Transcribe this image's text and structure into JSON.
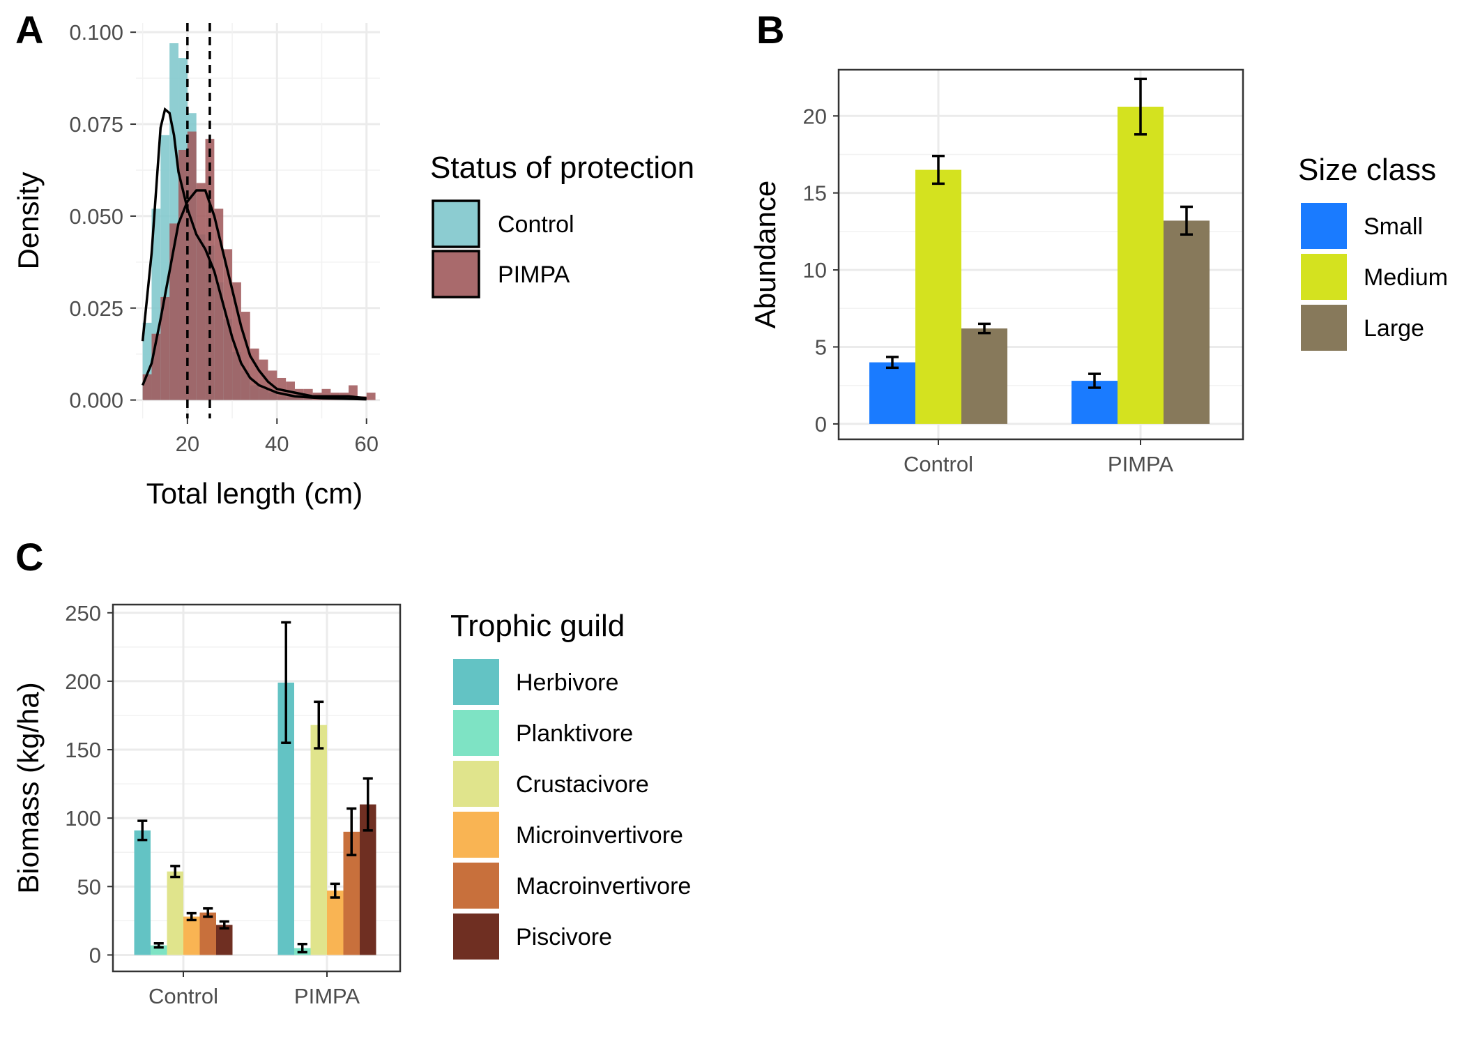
{
  "panels": {
    "A": {
      "label": "A"
    },
    "B": {
      "label": "B"
    },
    "C": {
      "label": "C"
    }
  },
  "chart_data": [
    {
      "panel": "A",
      "type": "histogram",
      "xlabel": "Total length (cm)",
      "ylabel": "Density",
      "xlim": [
        8.5,
        63
      ],
      "ylim": [
        0,
        0.1
      ],
      "xticks": [
        20,
        40,
        60
      ],
      "yticks": [
        0.0,
        0.025,
        0.05,
        0.075,
        0.1
      ],
      "ytick_labels": [
        "0.000",
        "0.025",
        "0.050",
        "0.075",
        "0.100"
      ],
      "grid": true,
      "legend": {
        "title": "Status of protection",
        "position": "right"
      },
      "series": [
        {
          "name": "Control",
          "color": "#7fc7cc",
          "bin_width": 2,
          "bin_starts": [
            10,
            12,
            14,
            16,
            18,
            20,
            22,
            24,
            26,
            28,
            30,
            32,
            34,
            36,
            38,
            40,
            42,
            44,
            46,
            48,
            50,
            52,
            54,
            56,
            58,
            60
          ],
          "density": [
            0.021,
            0.052,
            0.072,
            0.097,
            0.093,
            0.078,
            0.045,
            0.042,
            0.032,
            0.022,
            0.013,
            0.008,
            0.004,
            0.003,
            0.002,
            0.001,
            0.001,
            0.001,
            0.001,
            0,
            0,
            0,
            0,
            0,
            0,
            0
          ],
          "kde": [
            [
              10,
              0.016
            ],
            [
              12,
              0.04
            ],
            [
              14,
              0.074
            ],
            [
              15,
              0.079
            ],
            [
              16,
              0.078
            ],
            [
              17,
              0.072
            ],
            [
              18,
              0.062
            ],
            [
              20,
              0.052
            ],
            [
              22,
              0.045
            ],
            [
              24,
              0.041
            ],
            [
              26,
              0.035
            ],
            [
              28,
              0.026
            ],
            [
              30,
              0.017
            ],
            [
              32,
              0.01
            ],
            [
              34,
              0.006
            ],
            [
              36,
              0.004
            ],
            [
              40,
              0.002
            ],
            [
              44,
              0.001
            ],
            [
              50,
              0.0005
            ],
            [
              60,
              0.0002
            ]
          ]
        },
        {
          "name": "PIMPA",
          "color": "#a05a5c",
          "bin_width": 2,
          "bin_starts": [
            10,
            12,
            14,
            16,
            18,
            20,
            22,
            24,
            26,
            28,
            30,
            32,
            34,
            36,
            38,
            40,
            42,
            44,
            46,
            48,
            50,
            52,
            54,
            56,
            58,
            60
          ],
          "density": [
            0.007,
            0.018,
            0.028,
            0.048,
            0.068,
            0.073,
            0.059,
            0.071,
            0.052,
            0.041,
            0.032,
            0.024,
            0.014,
            0.011,
            0.008,
            0.006,
            0.005,
            0.003,
            0.003,
            0.002,
            0.003,
            0.002,
            0.002,
            0.004,
            0.001,
            0.002
          ],
          "kde": [
            [
              10,
              0.004
            ],
            [
              12,
              0.01
            ],
            [
              14,
              0.022
            ],
            [
              16,
              0.035
            ],
            [
              18,
              0.048
            ],
            [
              20,
              0.054
            ],
            [
              22,
              0.057
            ],
            [
              24,
              0.057
            ],
            [
              26,
              0.05
            ],
            [
              28,
              0.04
            ],
            [
              30,
              0.03
            ],
            [
              32,
              0.02
            ],
            [
              34,
              0.012
            ],
            [
              36,
              0.008
            ],
            [
              38,
              0.005
            ],
            [
              40,
              0.003
            ],
            [
              44,
              0.002
            ],
            [
              48,
              0.001
            ],
            [
              52,
              0.001
            ],
            [
              56,
              0.001
            ],
            [
              60,
              0.0005
            ]
          ]
        }
      ],
      "vlines": [
        20,
        25
      ]
    },
    {
      "panel": "B",
      "type": "bar",
      "categories": [
        "Control",
        "PIMPA"
      ],
      "ylabel": "Abundance",
      "xlabel": "",
      "ylim": [
        -1,
        23
      ],
      "yticks": [
        0,
        5,
        10,
        15,
        20
      ],
      "grid": true,
      "legend": {
        "title": "Size class",
        "position": "right"
      },
      "series": [
        {
          "name": "Small",
          "color": "#1a7bff",
          "values": [
            4.0,
            2.8
          ],
          "errors": [
            0.35,
            0.45
          ]
        },
        {
          "name": "Medium",
          "color": "#d4e21f",
          "values": [
            16.5,
            20.6
          ],
          "errors": [
            0.9,
            1.8
          ]
        },
        {
          "name": "Large",
          "color": "#87795b",
          "values": [
            6.2,
            13.2
          ],
          "errors": [
            0.3,
            0.9
          ]
        }
      ]
    },
    {
      "panel": "C",
      "type": "bar",
      "categories": [
        "Control",
        "PIMPA"
      ],
      "ylabel": "Biomass (kg/ha)",
      "xlabel": "",
      "ylim": [
        -12,
        256
      ],
      "yticks": [
        0,
        50,
        100,
        150,
        200,
        250
      ],
      "grid": true,
      "legend": {
        "title": "Trophic guild",
        "position": "right"
      },
      "series": [
        {
          "name": "Herbivore",
          "color": "#63c3c4",
          "values": [
            91,
            199
          ],
          "errors": [
            7,
            44
          ]
        },
        {
          "name": "Planktivore",
          "color": "#7ee3c4",
          "values": [
            7,
            5
          ],
          "errors": [
            1.5,
            3
          ]
        },
        {
          "name": "Crustacivore",
          "color": "#e0e48c",
          "values": [
            61,
            168
          ],
          "errors": [
            4,
            17
          ]
        },
        {
          "name": "Microinvertivore",
          "color": "#f9b453",
          "values": [
            28,
            47
          ],
          "errors": [
            2.5,
            5
          ]
        },
        {
          "name": "Macroinvertivore",
          "color": "#c8703c",
          "values": [
            31,
            90
          ],
          "errors": [
            3,
            17
          ]
        },
        {
          "name": "Piscivore",
          "color": "#6f2f22",
          "values": [
            22,
            110
          ],
          "errors": [
            2.5,
            19
          ]
        }
      ]
    }
  ]
}
